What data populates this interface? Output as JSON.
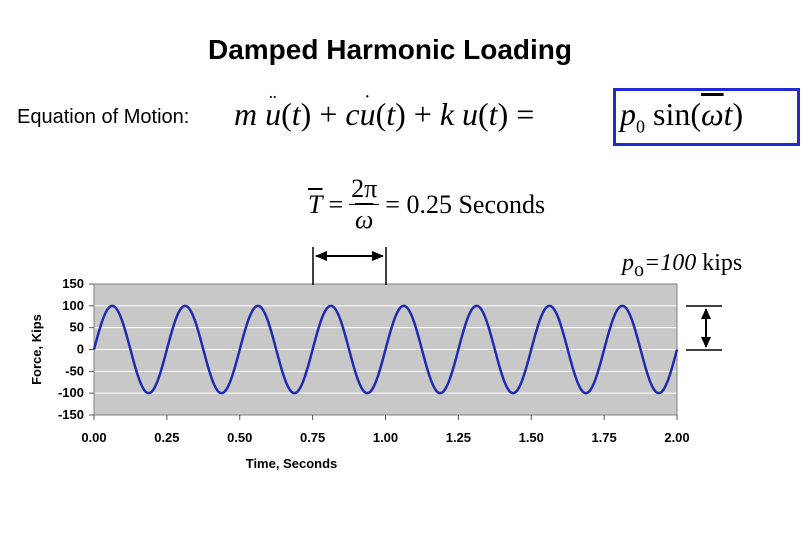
{
  "slide": {
    "title": "Damped Harmonic Loading",
    "eom_label": "Equation of Motion:"
  },
  "equation": {
    "m": "m",
    "c": "c",
    "k": "k",
    "u": "u",
    "t": "t",
    "plus": "+",
    "equals": "=",
    "dot": "˙",
    "ddot": "¨"
  },
  "load": {
    "p": "p",
    "sub": "0",
    "sin": "sin",
    "omega": "ω",
    "t": "t"
  },
  "period": {
    "T": "T",
    "equals": "=",
    "num": "2π",
    "den": "ω",
    "value": "= 0.25 Seconds"
  },
  "annotation": {
    "p": "p",
    "sub": "o",
    "value": "=100",
    "unit": " kips"
  },
  "colors": {
    "series": "#1f2bb0",
    "plot_bg": "#c8c8c8",
    "grid": "#ffffff",
    "box": "#1f2bd0"
  },
  "chart_data": {
    "type": "line",
    "xlabel": "Time, Seconds",
    "ylabel": "Force, Kips",
    "xlim": [
      0,
      2
    ],
    "ylim": [
      -150,
      150
    ],
    "x_ticks": [
      "0.00",
      "0.25",
      "0.50",
      "0.75",
      "1.00",
      "1.25",
      "1.50",
      "1.75",
      "2.00"
    ],
    "y_ticks": [
      "150",
      "100",
      "50",
      "0",
      "-50",
      "-100",
      "-150"
    ],
    "grid": true,
    "series": [
      {
        "amplitude": 100,
        "period": 0.25,
        "x_end": 2.0
      }
    ]
  }
}
